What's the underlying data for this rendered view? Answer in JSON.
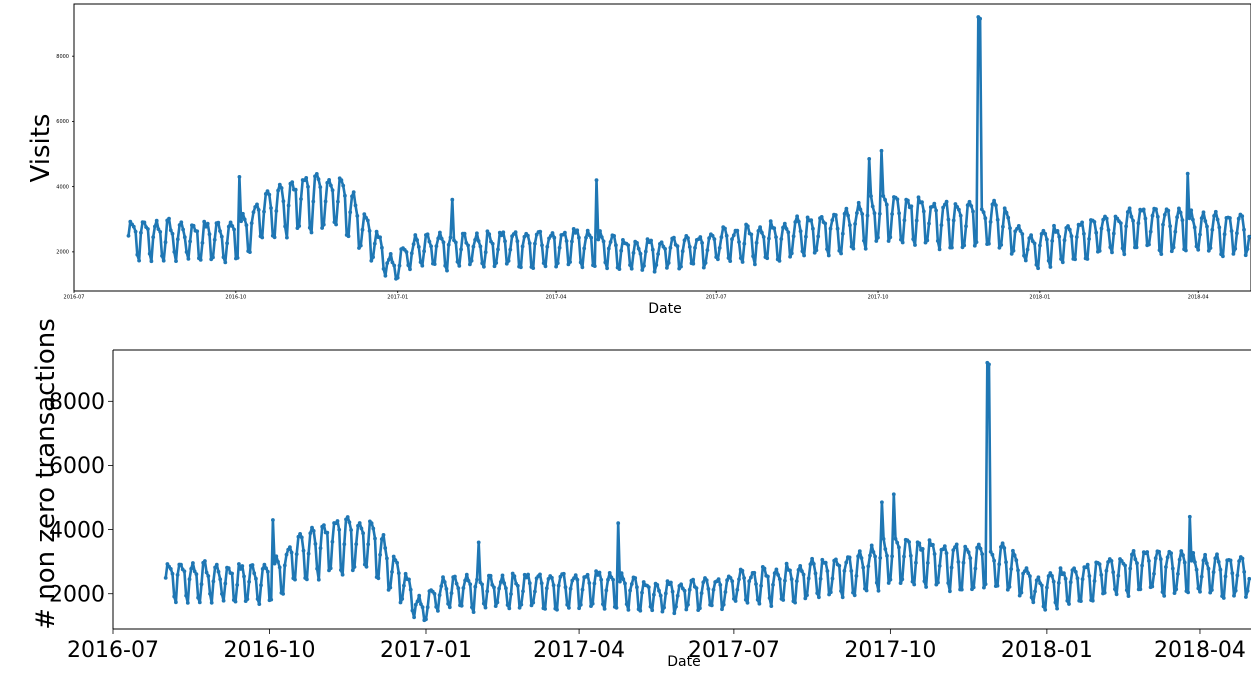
{
  "chart_data": [
    {
      "type": "line",
      "xlabel": "Date",
      "ylabel": "Visits",
      "x_ticks": [
        "2016-07",
        "2016-10",
        "2017-01",
        "2017-04",
        "2017-07",
        "2017-10",
        "2018-01",
        "2018-04"
      ],
      "y_ticks": [
        "2000",
        "4000",
        "6000",
        "8000"
      ],
      "xlim": [
        "2016-07-01",
        "2018-05-01"
      ],
      "ylim": [
        800,
        9600
      ],
      "grid": false,
      "series_color": "#1f77b4",
      "x_start": "2016-08-01",
      "x_end": "2018-04-30",
      "daily_points": true,
      "weekly_pattern": "values peak mid-week and dip on weekends by about 1000",
      "trend": [
        {
          "x": "2016-08-01",
          "y": 2600
        },
        {
          "x": "2016-09-01",
          "y": 2500
        },
        {
          "x": "2016-10-01",
          "y": 2500
        },
        {
          "x": "2016-10-20",
          "y": 3400
        },
        {
          "x": "2016-11-10",
          "y": 3800
        },
        {
          "x": "2016-11-30",
          "y": 3800
        },
        {
          "x": "2016-12-15",
          "y": 2700
        },
        {
          "x": "2016-12-28",
          "y": 1600
        },
        {
          "x": "2017-01-10",
          "y": 2100
        },
        {
          "x": "2017-03-01",
          "y": 2250
        },
        {
          "x": "2017-04-15",
          "y": 2300
        },
        {
          "x": "2017-05-20",
          "y": 2000
        },
        {
          "x": "2017-07-01",
          "y": 2300
        },
        {
          "x": "2017-08-15",
          "y": 2600
        },
        {
          "x": "2017-09-10",
          "y": 2800
        },
        {
          "x": "2017-10-05",
          "y": 3300
        },
        {
          "x": "2017-11-01",
          "y": 3100
        },
        {
          "x": "2017-12-10",
          "y": 3000
        },
        {
          "x": "2017-12-28",
          "y": 2100
        },
        {
          "x": "2018-01-15",
          "y": 2500
        },
        {
          "x": "2018-03-01",
          "y": 2900
        },
        {
          "x": "2018-04-30",
          "y": 2700
        }
      ],
      "spikes": [
        {
          "x": "2016-10-03",
          "y": 4300
        },
        {
          "x": "2017-02-01",
          "y": 3600
        },
        {
          "x": "2017-04-24",
          "y": 4200
        },
        {
          "x": "2017-09-26",
          "y": 4850
        },
        {
          "x": "2017-10-03",
          "y": 5100
        },
        {
          "x": "2017-11-27",
          "y": 9200
        },
        {
          "x": "2017-11-28",
          "y": 9150
        },
        {
          "x": "2018-03-26",
          "y": 4400
        }
      ]
    },
    {
      "type": "line",
      "xlabel": "Date",
      "ylabel": "# non zero transactions",
      "x_ticks": [
        "2016-07",
        "2016-10",
        "2017-01",
        "2017-04",
        "2017-07",
        "2017-10",
        "2018-01",
        "2018-04"
      ],
      "y_ticks": [
        "2000",
        "4000",
        "6000",
        "8000"
      ],
      "xlim": [
        "2016-07-01",
        "2018-05-01"
      ],
      "ylim": [
        900,
        9600
      ],
      "grid": false,
      "series_color": "#1f77b4",
      "same_series_as_chart": 0
    }
  ]
}
